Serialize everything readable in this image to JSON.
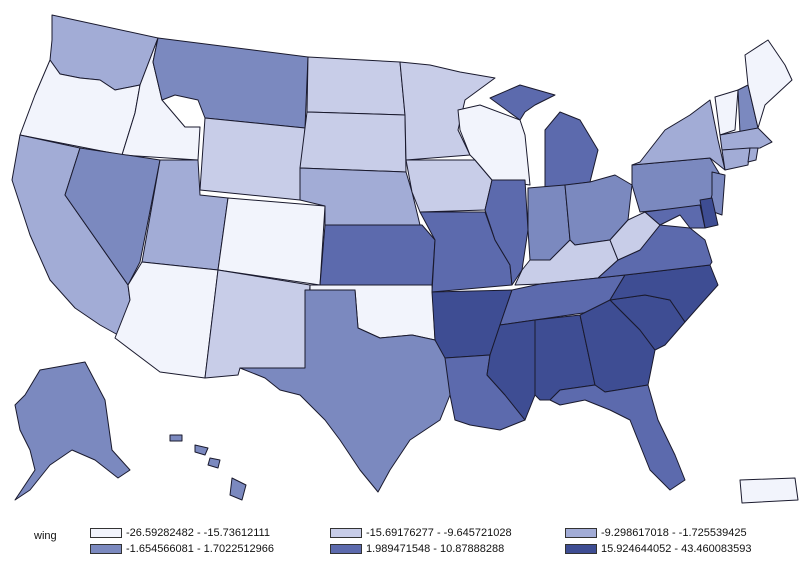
{
  "legend": {
    "title": "wing",
    "classes": [
      {
        "label": "-26.59282482 - -15.73612111",
        "color": "#f2f4fc"
      },
      {
        "label": "-15.69176277 - -9.645721028",
        "color": "#c8cde8"
      },
      {
        "label": "-9.298617018 - -1.725539425",
        "color": "#a2acd6"
      },
      {
        "label": "-1.654566081 - 1.7022512966",
        "color": "#7b89bf"
      },
      {
        "label": "1.989471548 - 10.87888288",
        "color": "#5c6aad"
      },
      {
        "label": "15.924644052 - 43.460083593",
        "color": "#3e4d93"
      }
    ]
  },
  "chart_data": {
    "type": "choropleth",
    "variable": "wing",
    "states": {
      "WA": 2,
      "OR": 0,
      "ID": 0,
      "MT": 3,
      "WY": 1,
      "CA": 2,
      "NV": 3,
      "UT": 2,
      "AZ": 0,
      "CO": 0,
      "NM": 1,
      "ND": 1,
      "SD": 1,
      "NE": 2,
      "KS": 4,
      "OK": 0,
      "TX": 3,
      "MN": 1,
      "IA": 1,
      "MO": 4,
      "AR": 5,
      "LA": 4,
      "WI": 0,
      "IL": 4,
      "MI": 4,
      "IN": 3,
      "OH": 3,
      "KY": 1,
      "TN": 4,
      "MS": 5,
      "AL": 5,
      "GA": 5,
      "FL": 4,
      "SC": 5,
      "NC": 5,
      "VA": 4,
      "WV": 1,
      "PA": 3,
      "NY": 2,
      "VT": 0,
      "NH": 3,
      "ME": 0,
      "MA": 2,
      "CT": 2,
      "RI": 2,
      "NJ": 3,
      "DE": 5,
      "MD": 4,
      "AK": 3,
      "HI": 3,
      "PR": 0
    }
  }
}
